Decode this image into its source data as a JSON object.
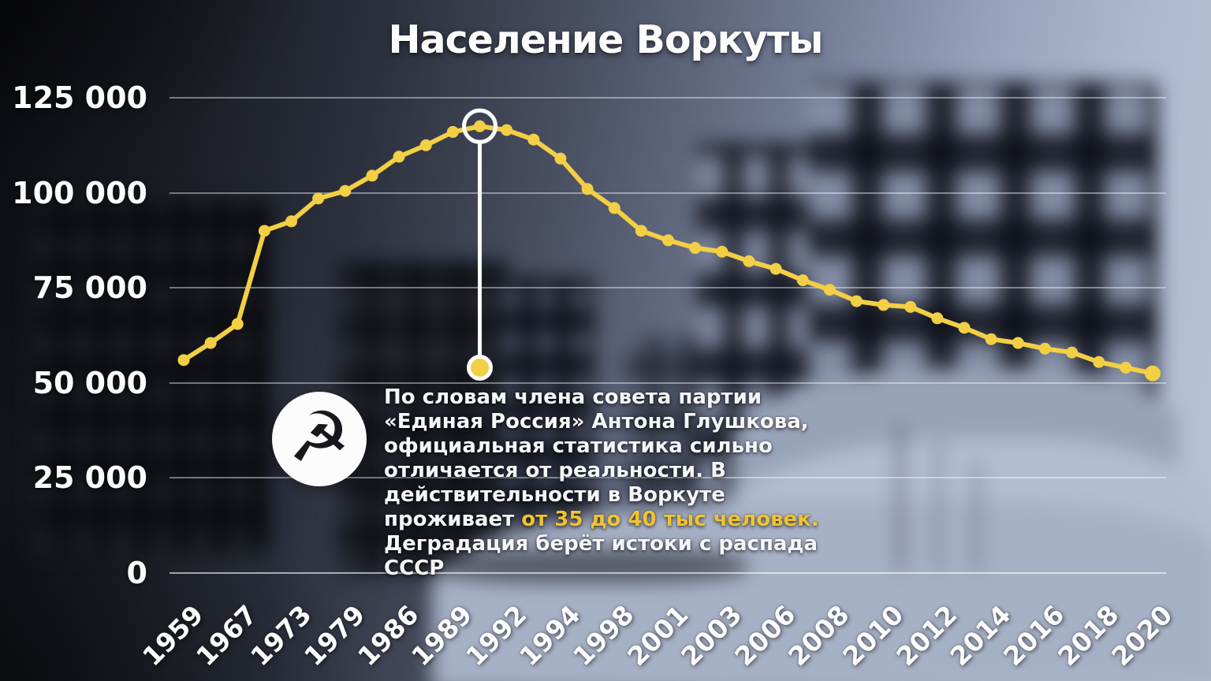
{
  "title": "Население Воркуты",
  "icon": {
    "name": "hammer-and-sickle",
    "glyph": "☭"
  },
  "annotation": {
    "part1": "По словам члена совета партии «Единая Россия» Антона Глушкова, официальная статистика сильно отличается от реальности. В действительности в Воркуте проживает ",
    "highlight": "от 35 до 40 тыс человек.",
    "part2": " Деградация берёт истоки с распада СССР",
    "highlight_color": "#F0C332"
  },
  "colors": {
    "line": "#F3CF45",
    "point": "#F3CF45",
    "ring": "#FFFFFF",
    "callout_line": "#FFFFFF",
    "grid": "rgba(255,255,255,0.42)"
  },
  "chart_data": {
    "type": "line",
    "title": "Население Воркуты",
    "xlabel": "",
    "ylabel": "",
    "ylim": [
      0,
      125000
    ],
    "grid": true,
    "legend": false,
    "y_ticks": [
      "125 000",
      "100 000",
      "75 000",
      "50 000",
      "25 000",
      "0"
    ],
    "y_tick_values": [
      125000,
      100000,
      75000,
      50000,
      25000,
      0
    ],
    "x_tick_labels": [
      "1959",
      "1967",
      "1973",
      "1979",
      "1986",
      "1989",
      "1992",
      "1994",
      "1998",
      "2001",
      "2003",
      "2006",
      "2008",
      "2010",
      "2012",
      "2014",
      "2016",
      "2018",
      "2020"
    ],
    "points": [
      {
        "label": "1959",
        "value": 56000
      },
      {
        "label": "",
        "value": 60500
      },
      {
        "label": "1967",
        "value": 65500
      },
      {
        "label": "",
        "value": 90000
      },
      {
        "label": "1973",
        "value": 92500
      },
      {
        "label": "",
        "value": 98500
      },
      {
        "label": "1979",
        "value": 100500
      },
      {
        "label": "",
        "value": 104500
      },
      {
        "label": "1986",
        "value": 109500
      },
      {
        "label": "",
        "value": 112500
      },
      {
        "label": "1989",
        "value": 116000
      },
      {
        "label": "",
        "value": 117500
      },
      {
        "label": "1992",
        "value": 116500
      },
      {
        "label": "",
        "value": 114000
      },
      {
        "label": "1994",
        "value": 109000
      },
      {
        "label": "",
        "value": 101000
      },
      {
        "label": "1998",
        "value": 96000
      },
      {
        "label": "",
        "value": 90000
      },
      {
        "label": "2001",
        "value": 87500
      },
      {
        "label": "",
        "value": 85500
      },
      {
        "label": "2003",
        "value": 84500
      },
      {
        "label": "",
        "value": 82000
      },
      {
        "label": "2006",
        "value": 80000
      },
      {
        "label": "",
        "value": 77000
      },
      {
        "label": "2008",
        "value": 74500
      },
      {
        "label": "",
        "value": 71500
      },
      {
        "label": "2010",
        "value": 70500
      },
      {
        "label": "",
        "value": 70000
      },
      {
        "label": "2012",
        "value": 67000
      },
      {
        "label": "",
        "value": 64500
      },
      {
        "label": "2014",
        "value": 61500
      },
      {
        "label": "",
        "value": 60500
      },
      {
        "label": "2016",
        "value": 59000
      },
      {
        "label": "",
        "value": 58000
      },
      {
        "label": "2018",
        "value": 55500
      },
      {
        "label": "",
        "value": 54000
      },
      {
        "label": "2020",
        "value": 52500
      }
    ],
    "peak_marker": {
      "point_index": 11,
      "value": 117500,
      "style": "white-ring"
    },
    "callout": {
      "from_point_index": 11,
      "anchor_value": 54000
    }
  }
}
